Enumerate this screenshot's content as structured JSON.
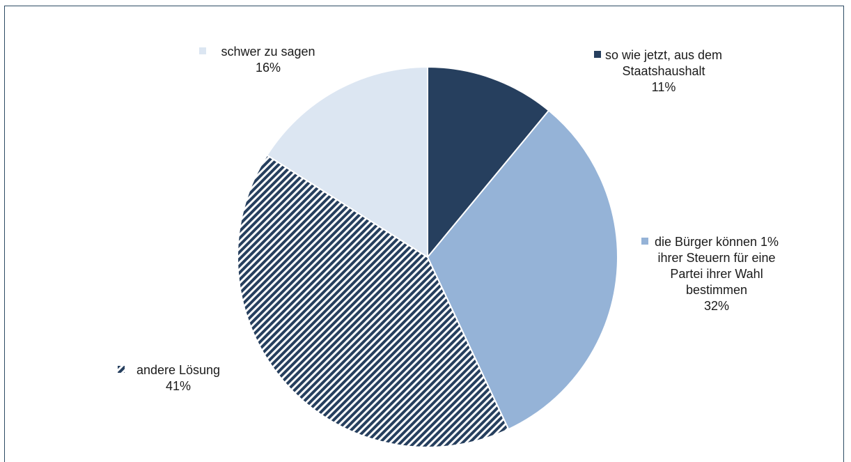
{
  "chart_data": {
    "type": "pie",
    "title": "",
    "start_angle_deg": 0,
    "direction": "clockwise",
    "slices": [
      {
        "label_lines": [
          "so wie jetzt, aus dem",
          "Staatshaushalt"
        ],
        "value": 11,
        "value_label": "11%",
        "color": "#263f5e",
        "pattern": "solid"
      },
      {
        "label_lines": [
          "die Bürger können 1%",
          "ihrer Steuern für eine",
          "Partei ihrer Wahl",
          "bestimmen"
        ],
        "value": 32,
        "value_label": "32%",
        "color": "#95b3d7",
        "pattern": "solid"
      },
      {
        "label_lines": [
          "andere Lösung"
        ],
        "value": 41,
        "value_label": "41%",
        "color": "#263f5e",
        "pattern": "diagonal-stripes"
      },
      {
        "label_lines": [
          "schwer zu sagen"
        ],
        "value": 16,
        "value_label": "16%",
        "color": "#dce6f2",
        "pattern": "solid"
      }
    ]
  }
}
